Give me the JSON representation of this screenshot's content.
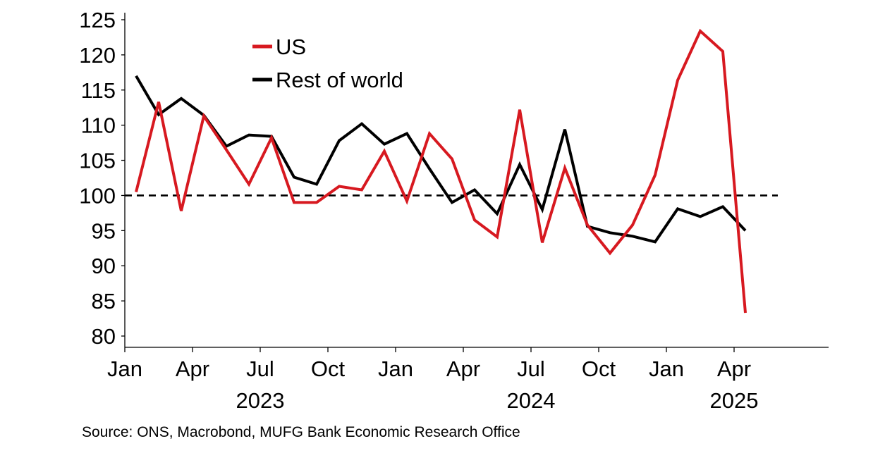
{
  "chart_data": {
    "type": "line",
    "title": "",
    "xlabel": "",
    "ylabel": "",
    "ylim": [
      80,
      125
    ],
    "yticks": [
      80,
      85,
      90,
      95,
      100,
      105,
      110,
      115,
      120,
      125
    ],
    "reference_line": 100,
    "x_month_ticks": [
      {
        "index": 0,
        "label": "Jan"
      },
      {
        "index": 3,
        "label": "Apr"
      },
      {
        "index": 6,
        "label": "Jul"
      },
      {
        "index": 9,
        "label": "Oct"
      },
      {
        "index": 12,
        "label": "Jan"
      },
      {
        "index": 15,
        "label": "Apr"
      },
      {
        "index": 18,
        "label": "Jul"
      },
      {
        "index": 21,
        "label": "Oct"
      },
      {
        "index": 24,
        "label": "Jan"
      },
      {
        "index": 27,
        "label": "Apr"
      }
    ],
    "x_year_labels": [
      {
        "index": 6,
        "label": "2023"
      },
      {
        "index": 18,
        "label": "2024"
      },
      {
        "index": 27,
        "label": "2025"
      }
    ],
    "x_max_index": 31,
    "series": [
      {
        "name": "US",
        "color": "#d71920",
        "values": [
          100.5,
          113.3,
          97.8,
          111.3,
          106.5,
          101.6,
          108.2,
          99.0,
          99.0,
          101.3,
          100.8,
          106.3,
          99.2,
          108.8,
          105.2,
          96.5,
          94.1,
          112.2,
          93.3,
          103.9,
          95.8,
          91.8,
          95.8,
          102.9,
          116.4,
          123.4,
          120.5,
          83.3
        ]
      },
      {
        "name": "Rest of world",
        "color": "#000000",
        "values": [
          117.0,
          111.5,
          113.8,
          111.4,
          107.0,
          108.6,
          108.4,
          102.6,
          101.6,
          107.8,
          110.2,
          107.3,
          108.8,
          103.8,
          99.0,
          100.8,
          97.4,
          104.4,
          98.0,
          109.4,
          95.6,
          94.7,
          94.2,
          93.4,
          98.1,
          97.0,
          98.4,
          95.0
        ]
      }
    ]
  },
  "source_text": "Source: ONS, Macrobond, MUFG Bank Economic Research Office"
}
